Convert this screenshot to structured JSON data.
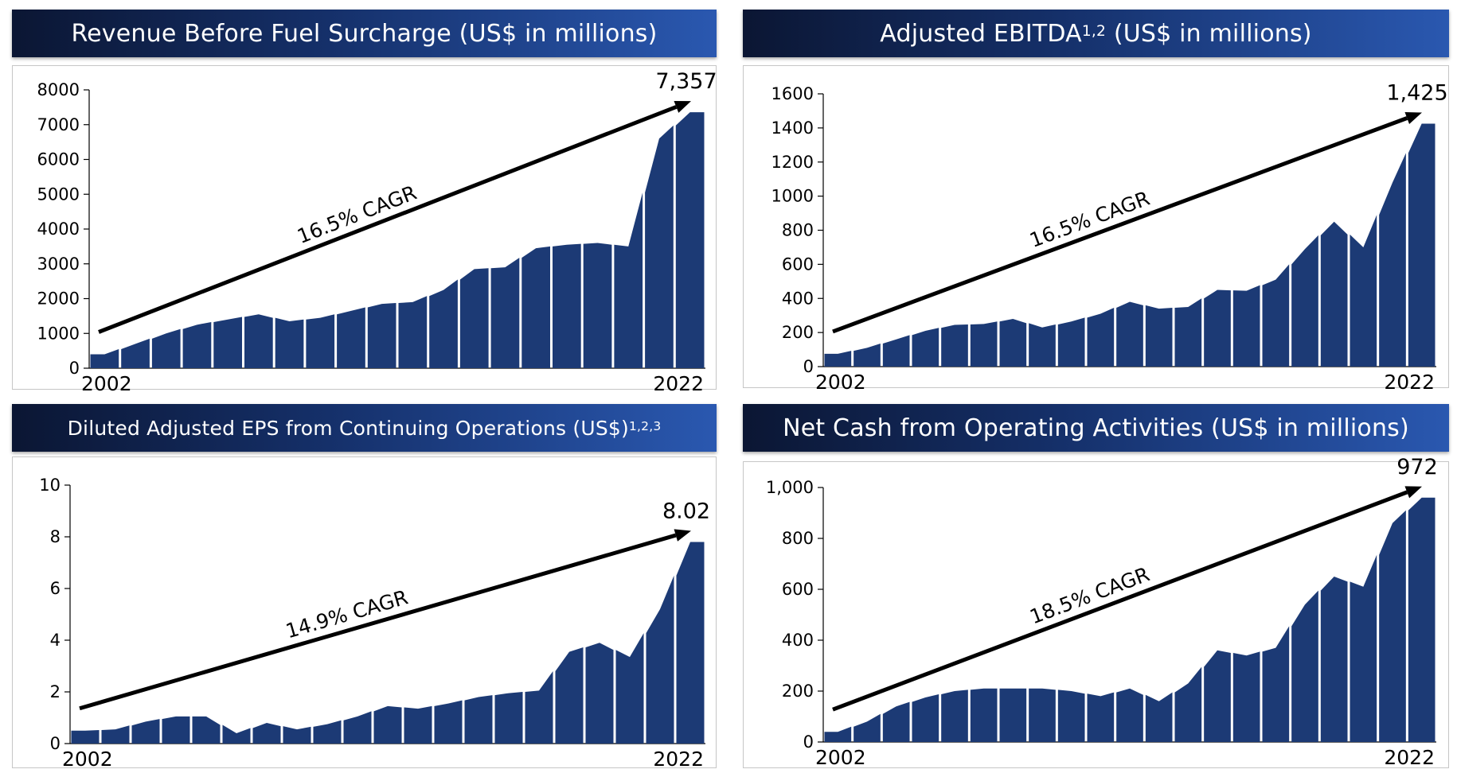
{
  "charts": [
    {
      "type": "area",
      "title": "Revenue Before Fuel Surcharge (US$ in millions)",
      "title_sup": "",
      "start_label": "2002",
      "end_label": "2022",
      "end_value_label": "7,357",
      "cagr_label": "16.5% CAGR",
      "ylim": [
        0,
        8000
      ],
      "yticks": [
        0,
        1000,
        2000,
        3000,
        4000,
        5000,
        6000,
        7000,
        8000
      ],
      "ytick_labels": [
        "0",
        "1000",
        "2000",
        "3000",
        "4000",
        "5000",
        "6000",
        "7000",
        "8000"
      ],
      "values": [
        400,
        700,
        1000,
        1250,
        1400,
        1550,
        1350,
        1450,
        1650,
        1850,
        1900,
        2250,
        2850,
        2900,
        3450,
        3550,
        3600,
        3500,
        6600,
        7357
      ],
      "color": "#1c3a75"
    },
    {
      "type": "area",
      "title": "Adjusted EBITDA",
      "title_sup": "1,2",
      "title_suffix": " (US$ in millions)",
      "start_label": "2002",
      "end_label": "2022",
      "end_value_label": "1,425",
      "cagr_label": "16.5% CAGR",
      "ylim": [
        0,
        1600
      ],
      "yticks": [
        0,
        200,
        400,
        600,
        800,
        1000,
        1200,
        1400,
        1600
      ],
      "ytick_labels": [
        "0",
        "200",
        "400",
        "600",
        "800",
        "1000",
        "1200",
        "1400",
        "1600"
      ],
      "values": [
        75,
        110,
        160,
        210,
        245,
        250,
        280,
        230,
        265,
        310,
        380,
        340,
        350,
        450,
        445,
        510,
        690,
        850,
        700,
        1080,
        1425
      ],
      "color": "#1c3a75"
    },
    {
      "type": "area",
      "title": "Diluted Adjusted EPS from Continuing Operations (US$)",
      "title_sup": "1,2,3",
      "title_suffix": "",
      "start_label": "2002",
      "end_label": "2022",
      "end_value_label": "8.02",
      "cagr_label": "14.9% CAGR",
      "ylim": [
        0,
        10
      ],
      "yticks": [
        0,
        2,
        4,
        6,
        8,
        10
      ],
      "ytick_labels": [
        "0",
        "2",
        "4",
        "6",
        "8",
        "10"
      ],
      "values": [
        0.5,
        0.55,
        0.85,
        1.05,
        1.05,
        0.4,
        0.8,
        0.55,
        0.75,
        1.05,
        1.45,
        1.35,
        1.55,
        1.8,
        1.95,
        2.05,
        3.55,
        3.9,
        3.35,
        5.2,
        7.8
      ],
      "color": "#1c3a75"
    },
    {
      "type": "area",
      "title": "Net Cash from Operating Activities (US$ in millions)",
      "title_sup": "",
      "title_suffix": "",
      "start_label": "2002",
      "end_label": "2022",
      "end_value_label": "972",
      "cagr_label": "18.5% CAGR",
      "ylim": [
        0,
        1000
      ],
      "yticks": [
        0,
        200,
        400,
        600,
        800,
        1000
      ],
      "ytick_labels": [
        "0",
        "200",
        "400",
        "600",
        "800",
        "1,000"
      ],
      "values": [
        40,
        80,
        140,
        175,
        200,
        210,
        210,
        210,
        200,
        180,
        210,
        160,
        230,
        360,
        340,
        370,
        540,
        650,
        610,
        860,
        960
      ],
      "color": "#1c3a75"
    }
  ]
}
